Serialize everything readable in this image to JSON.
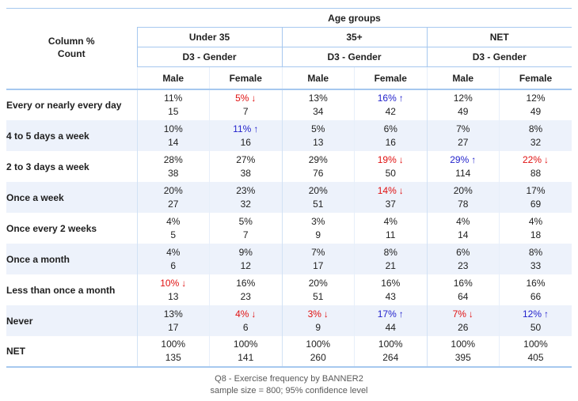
{
  "chart_data": {
    "type": "table",
    "statistics": [
      "Column %",
      "Count"
    ],
    "banner_title": "Age groups",
    "column_groups": [
      {
        "label": "Under 35",
        "subheader": "D3 - Gender",
        "columns": [
          "Male",
          "Female"
        ]
      },
      {
        "label": "35+",
        "subheader": "D3 - Gender",
        "columns": [
          "Male",
          "Female"
        ]
      },
      {
        "label": "NET",
        "subheader": "D3 - Gender",
        "columns": [
          "Male",
          "Female"
        ]
      }
    ],
    "rows": [
      {
        "label": "Every or nearly every day",
        "cells": [
          {
            "pct": "11%",
            "count": "15",
            "sig": null
          },
          {
            "pct": "5%",
            "count": "7",
            "sig": "down"
          },
          {
            "pct": "13%",
            "count": "34",
            "sig": null
          },
          {
            "pct": "16%",
            "count": "42",
            "sig": "up"
          },
          {
            "pct": "12%",
            "count": "49",
            "sig": null
          },
          {
            "pct": "12%",
            "count": "49",
            "sig": null
          }
        ]
      },
      {
        "label": "4 to 5 days a week",
        "cells": [
          {
            "pct": "10%",
            "count": "14",
            "sig": null
          },
          {
            "pct": "11%",
            "count": "16",
            "sig": "up"
          },
          {
            "pct": "5%",
            "count": "13",
            "sig": null
          },
          {
            "pct": "6%",
            "count": "16",
            "sig": null
          },
          {
            "pct": "7%",
            "count": "27",
            "sig": null
          },
          {
            "pct": "8%",
            "count": "32",
            "sig": null
          }
        ]
      },
      {
        "label": "2 to 3 days a week",
        "cells": [
          {
            "pct": "28%",
            "count": "38",
            "sig": null
          },
          {
            "pct": "27%",
            "count": "38",
            "sig": null
          },
          {
            "pct": "29%",
            "count": "76",
            "sig": null
          },
          {
            "pct": "19%",
            "count": "50",
            "sig": "down"
          },
          {
            "pct": "29%",
            "count": "114",
            "sig": "up"
          },
          {
            "pct": "22%",
            "count": "88",
            "sig": "down"
          }
        ]
      },
      {
        "label": "Once a week",
        "cells": [
          {
            "pct": "20%",
            "count": "27",
            "sig": null
          },
          {
            "pct": "23%",
            "count": "32",
            "sig": null
          },
          {
            "pct": "20%",
            "count": "51",
            "sig": null
          },
          {
            "pct": "14%",
            "count": "37",
            "sig": "down"
          },
          {
            "pct": "20%",
            "count": "78",
            "sig": null
          },
          {
            "pct": "17%",
            "count": "69",
            "sig": null
          }
        ]
      },
      {
        "label": "Once every 2 weeks",
        "cells": [
          {
            "pct": "4%",
            "count": "5",
            "sig": null
          },
          {
            "pct": "5%",
            "count": "7",
            "sig": null
          },
          {
            "pct": "3%",
            "count": "9",
            "sig": null
          },
          {
            "pct": "4%",
            "count": "11",
            "sig": null
          },
          {
            "pct": "4%",
            "count": "14",
            "sig": null
          },
          {
            "pct": "4%",
            "count": "18",
            "sig": null
          }
        ]
      },
      {
        "label": "Once a month",
        "cells": [
          {
            "pct": "4%",
            "count": "6",
            "sig": null
          },
          {
            "pct": "9%",
            "count": "12",
            "sig": null
          },
          {
            "pct": "7%",
            "count": "17",
            "sig": null
          },
          {
            "pct": "8%",
            "count": "21",
            "sig": null
          },
          {
            "pct": "6%",
            "count": "23",
            "sig": null
          },
          {
            "pct": "8%",
            "count": "33",
            "sig": null
          }
        ]
      },
      {
        "label": "Less than once a month",
        "cells": [
          {
            "pct": "10%",
            "count": "13",
            "sig": "down"
          },
          {
            "pct": "16%",
            "count": "23",
            "sig": null
          },
          {
            "pct": "20%",
            "count": "51",
            "sig": null
          },
          {
            "pct": "16%",
            "count": "43",
            "sig": null
          },
          {
            "pct": "16%",
            "count": "64",
            "sig": null
          },
          {
            "pct": "16%",
            "count": "66",
            "sig": null
          }
        ]
      },
      {
        "label": "Never",
        "cells": [
          {
            "pct": "13%",
            "count": "17",
            "sig": null
          },
          {
            "pct": "4%",
            "count": "6",
            "sig": "down"
          },
          {
            "pct": "3%",
            "count": "9",
            "sig": "down"
          },
          {
            "pct": "17%",
            "count": "44",
            "sig": "up"
          },
          {
            "pct": "7%",
            "count": "26",
            "sig": "down"
          },
          {
            "pct": "12%",
            "count": "50",
            "sig": "up"
          }
        ]
      },
      {
        "label": "NET",
        "cells": [
          {
            "pct": "100%",
            "count": "135",
            "sig": null
          },
          {
            "pct": "100%",
            "count": "141",
            "sig": null
          },
          {
            "pct": "100%",
            "count": "260",
            "sig": null
          },
          {
            "pct": "100%",
            "count": "264",
            "sig": null
          },
          {
            "pct": "100%",
            "count": "395",
            "sig": null
          },
          {
            "pct": "100%",
            "count": "405",
            "sig": null
          }
        ]
      }
    ],
    "title": "Q8 - Exercise frequency by BANNER2",
    "footnote": "sample size = 800; 95% confidence level"
  },
  "icons": {
    "sig_up_arrow": "↑",
    "sig_down_arrow": "↓"
  },
  "colors": {
    "significance_up": "#2323cc",
    "significance_down": "#e01111",
    "grid_line": "#a6c8ef",
    "row_stripe": "#edf2fb",
    "footer_text": "#595959"
  }
}
